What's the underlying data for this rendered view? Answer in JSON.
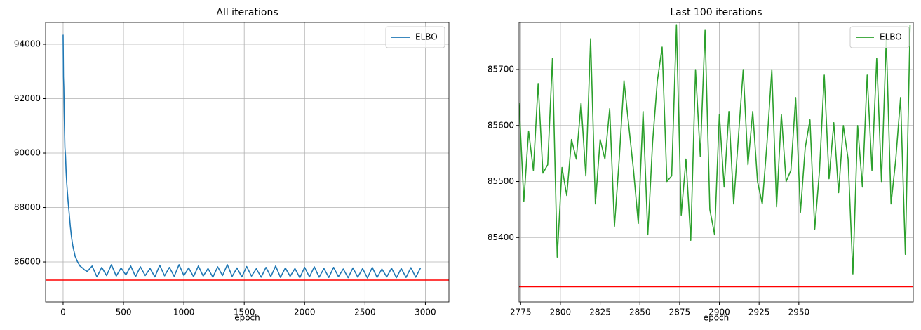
{
  "chart_data": [
    {
      "type": "line",
      "title": "All iterations",
      "xlabel": "epoch",
      "x": [
        0,
        3,
        6,
        9,
        12,
        15,
        20,
        25,
        30,
        40,
        50,
        60,
        70,
        80,
        90,
        100,
        120,
        140,
        160,
        180,
        200,
        240,
        280,
        320,
        360,
        400,
        440,
        480,
        520,
        560,
        600,
        640,
        680,
        720,
        760,
        800,
        840,
        880,
        920,
        960,
        1000,
        1040,
        1080,
        1120,
        1160,
        1200,
        1240,
        1280,
        1320,
        1360,
        1400,
        1440,
        1480,
        1520,
        1560,
        1600,
        1640,
        1680,
        1720,
        1760,
        1800,
        1840,
        1880,
        1920,
        1960,
        2000,
        2040,
        2080,
        2120,
        2160,
        2200,
        2240,
        2280,
        2320,
        2360,
        2400,
        2440,
        2480,
        2520,
        2560,
        2600,
        2640,
        2680,
        2720,
        2760,
        2800,
        2840,
        2880,
        2920,
        2960
      ],
      "series": [
        {
          "name": "ELBO",
          "color": "#1f77b4",
          "values": [
            94350,
            92800,
            92400,
            91500,
            90800,
            90200,
            89900,
            89300,
            88900,
            88300,
            87800,
            87300,
            86900,
            86600,
            86400,
            86200,
            86000,
            85850,
            85780,
            85700,
            85650,
            85850,
            85450,
            85800,
            85500,
            85900,
            85480,
            85780,
            85520,
            85850,
            85460,
            85820,
            85500,
            85760,
            85450,
            85880,
            85490,
            85800,
            85470,
            85900,
            85500,
            85780,
            85460,
            85850,
            85480,
            85760,
            85440,
            85820,
            85500,
            85900,
            85470,
            85780,
            85450,
            85830,
            85480,
            85750,
            85440,
            85800,
            85460,
            85850,
            85430,
            85780,
            85470,
            85760,
            85420,
            85800,
            85450,
            85820,
            85440,
            85760,
            85430,
            85800,
            85460,
            85740,
            85420,
            85780,
            85440,
            85760,
            85410,
            85800,
            85430,
            85740,
            85450,
            85770,
            85420,
            85760,
            85430,
            85790,
            85440,
            85780
          ]
        }
      ],
      "hline": 85330,
      "hline_color": "#ff0000",
      "xlim": [
        -145,
        3195
      ],
      "ylim": [
        84530,
        94800
      ],
      "xticks": [
        0,
        500,
        1000,
        1500,
        2000,
        2500,
        3000
      ],
      "yticks": [
        86000,
        88000,
        90000,
        92000,
        94000
      ],
      "grid": true,
      "legend": "upper right"
    },
    {
      "type": "line",
      "title": "Last 100 iterations",
      "xlabel": "epoch",
      "x": [
        2774,
        2777,
        2780,
        2783,
        2786,
        2789,
        2792,
        2795,
        2798,
        2801,
        2804,
        2807,
        2810,
        2813,
        2816,
        2819,
        2822,
        2825,
        2828,
        2831,
        2834,
        2837,
        2840,
        2843,
        2846,
        2849,
        2852,
        2855,
        2858,
        2861,
        2864,
        2867,
        2870,
        2873,
        2876,
        2879,
        2882,
        2885,
        2888,
        2891,
        2894,
        2897,
        2900,
        2903,
        2906,
        2909,
        2912,
        2915,
        2918,
        2921,
        2924,
        2927,
        2930,
        2933,
        2936,
        2939,
        2942,
        2945,
        2948,
        2951,
        2954,
        2957,
        2960,
        2963,
        2966,
        2969,
        2972,
        2975,
        2978,
        2981,
        2984,
        2987,
        2990,
        2993,
        2996,
        2999,
        3002,
        3005,
        3008,
        3011,
        3014,
        3017,
        3020
      ],
      "series": [
        {
          "name": "ELBO",
          "color": "#2ca02c",
          "values": [
            85640,
            85465,
            85590,
            85520,
            85675,
            85515,
            85530,
            85720,
            85365,
            85525,
            85475,
            85575,
            85540,
            85640,
            85510,
            85755,
            85460,
            85575,
            85540,
            85630,
            85420,
            85540,
            85680,
            85600,
            85520,
            85425,
            85625,
            85405,
            85570,
            85680,
            85740,
            85500,
            85510,
            85780,
            85440,
            85540,
            85395,
            85700,
            85545,
            85770,
            85450,
            85405,
            85620,
            85490,
            85625,
            85460,
            85580,
            85700,
            85530,
            85625,
            85500,
            85460,
            85570,
            85700,
            85455,
            85620,
            85500,
            85520,
            85650,
            85445,
            85560,
            85610,
            85415,
            85520,
            85690,
            85505,
            85605,
            85480,
            85600,
            85540,
            85335,
            85600,
            85490,
            85690,
            85520,
            85720,
            85500,
            85755,
            85460,
            85540,
            85650,
            85370,
            85780
          ]
        }
      ],
      "hline": 85312,
      "hline_color": "#ff0000",
      "xlim": [
        2774,
        3022
      ],
      "ylim": [
        85285,
        85784
      ],
      "xticks": [
        2775,
        2800,
        2825,
        2850,
        2875,
        2900,
        2925,
        2950
      ],
      "yticks": [
        85400,
        85500,
        85600,
        85700
      ],
      "grid": true,
      "legend": "upper right"
    }
  ]
}
